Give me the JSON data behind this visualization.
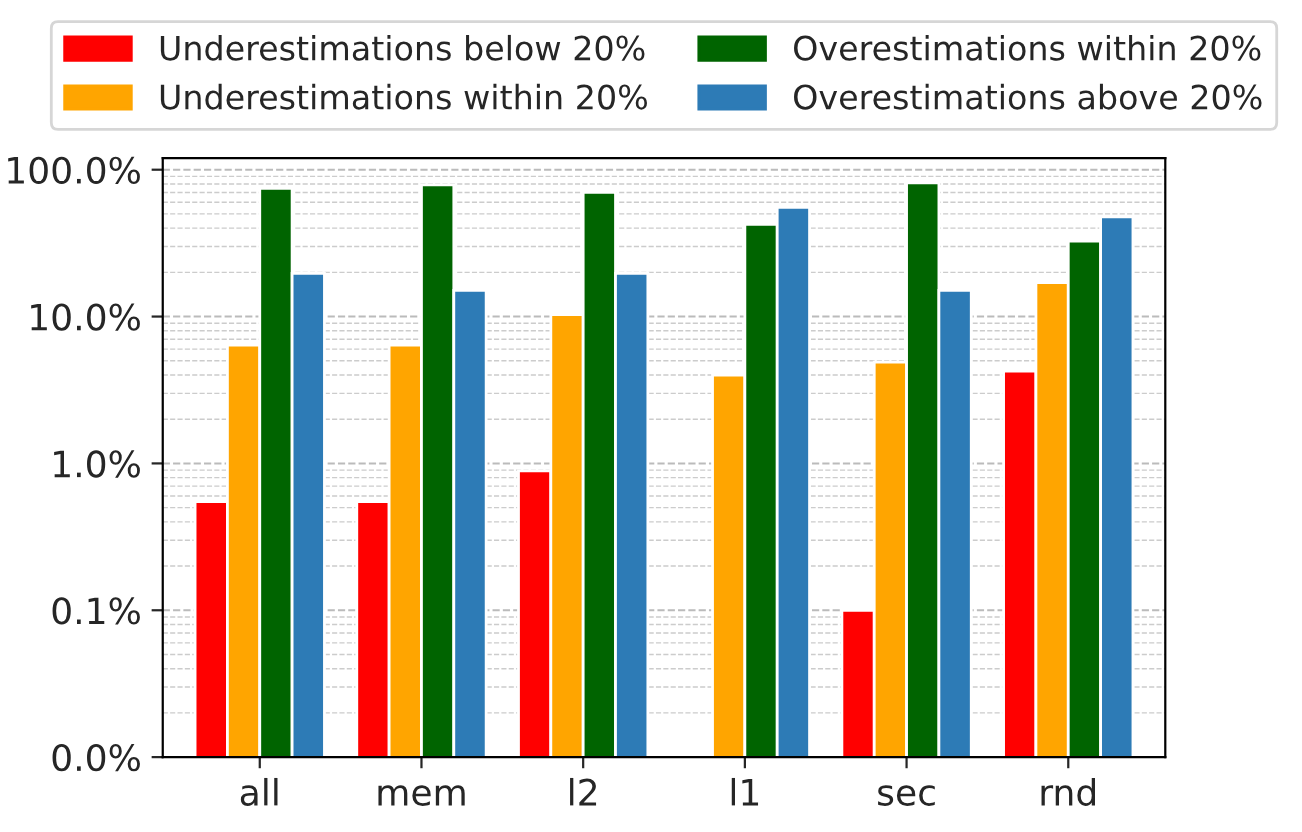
{
  "chart_data": {
    "type": "bar",
    "categories": [
      "all",
      "mem",
      "l2",
      "l1",
      "sec",
      "rnd"
    ],
    "series": [
      {
        "name": "Underestimations below 20%",
        "color": "#ff0000",
        "values": [
          0.55,
          0.55,
          0.89,
          null,
          0.1,
          4.25
        ]
      },
      {
        "name": "Underestimations within 20%",
        "color": "#ffa500",
        "values": [
          6.4,
          6.4,
          10.3,
          4.0,
          4.9,
          17.0
        ]
      },
      {
        "name": "Overestimations within 20%",
        "color": "#006400",
        "values": [
          74.5,
          78.9,
          70.2,
          42.5,
          81.3,
          32.6
        ]
      },
      {
        "name": "Overestimations above 20%",
        "color": "#2d7bb6",
        "values": [
          19.7,
          15.1,
          19.7,
          55.4,
          15.1,
          47.8
        ]
      }
    ],
    "log": "y",
    "ylim": [
      0.01,
      120
    ],
    "yticks": [
      {
        "value": 0.01,
        "label": "0.0%"
      },
      {
        "value": 0.1,
        "label": "0.1%"
      },
      {
        "value": 1,
        "label": "1.0%"
      },
      {
        "value": 10,
        "label": "10.0%"
      },
      {
        "value": 100,
        "label": "100.0%"
      }
    ],
    "grid": "y",
    "legend": "top"
  }
}
